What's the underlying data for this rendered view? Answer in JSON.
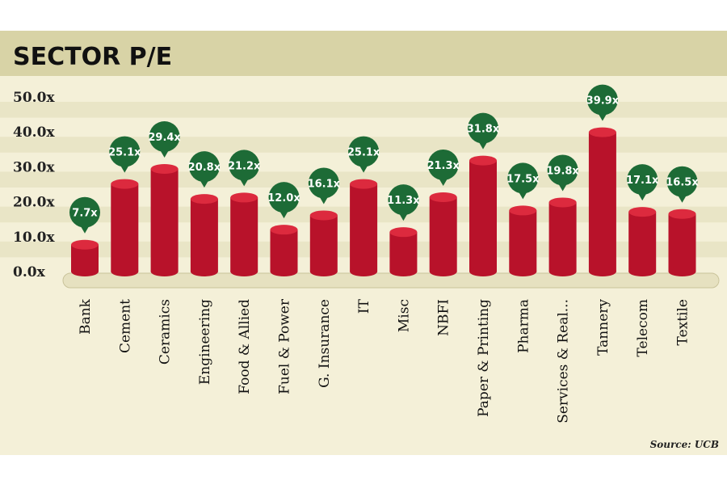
{
  "chart_data": {
    "type": "bar",
    "title": "SECTOR P/E",
    "source": "Source: UCB",
    "categories": [
      "Bank",
      "Cement",
      "Ceramics",
      "Engineering",
      "Food & Allied",
      "Fuel & Power",
      "G. Insurance",
      "IT",
      "Misc",
      "NBFI",
      "Paper & Printing",
      "Pharma",
      "Services & Real...",
      "Tannery",
      "Telecom",
      "Textile"
    ],
    "values": [
      7.7,
      25.1,
      29.4,
      20.8,
      21.2,
      12.0,
      16.1,
      25.1,
      11.3,
      21.3,
      31.8,
      17.5,
      19.8,
      39.9,
      17.1,
      16.5
    ],
    "value_labels": [
      "7.7x",
      "25.1x",
      "29.4x",
      "20.8x",
      "21.2x",
      "12.0x",
      "16.1x",
      "25.1x",
      "11.3x",
      "21.3x",
      "31.8x",
      "17.5x",
      "19.8x",
      "39.9x",
      "17.1x",
      "16.5x"
    ],
    "y_ticks": [
      0,
      10,
      20,
      30,
      40,
      50
    ],
    "y_tick_labels": [
      "0.0x",
      "10.0x",
      "20.0x",
      "30.0x",
      "40.0x",
      "50.0x"
    ],
    "ylim": [
      0,
      50
    ],
    "grid": true,
    "colors": {
      "background": "#f4f0d8",
      "title_band": "#d8d3a6",
      "grid_stripe": "#e9e5c6",
      "bar": "#b8122a",
      "bar_top": "#dc2a3e",
      "bubble": "#1d6b36",
      "label_text": "#ffffff",
      "axis_text": "#222222"
    }
  }
}
